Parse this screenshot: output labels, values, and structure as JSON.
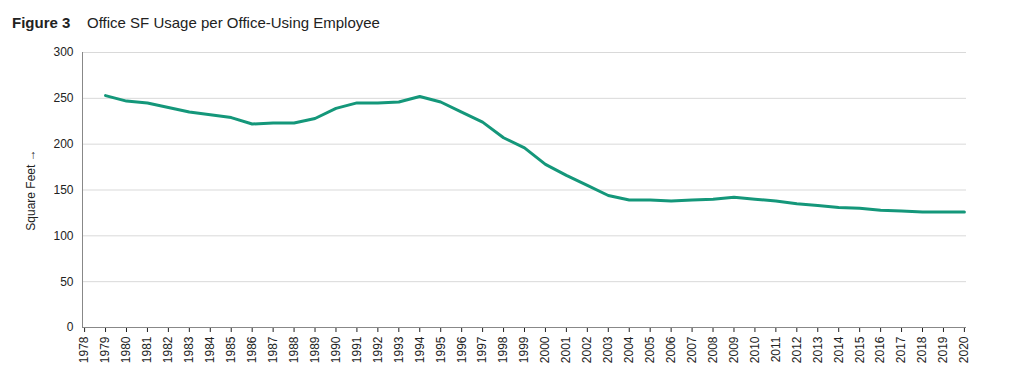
{
  "chart_data": {
    "type": "line",
    "title": "Figure 3    Office SF Usage per Office-Using Employee",
    "y_label": "Square Feet",
    "categories": [
      "1978",
      "1979",
      "1980",
      "1981",
      "1982",
      "1983",
      "1984",
      "1985",
      "1986",
      "1987",
      "1988",
      "1989",
      "1990",
      "1991",
      "1992",
      "1993",
      "1994",
      "1995",
      "1996",
      "1997",
      "1998",
      "1999",
      "2000",
      "2001",
      "2002",
      "2003",
      "2004",
      "2005",
      "2006",
      "2007",
      "2008",
      "2009",
      "2010",
      "2011",
      "2012",
      "2013",
      "2014",
      "2015",
      "2016",
      "2017",
      "2018",
      "2019",
      "2020"
    ],
    "values": [
      null,
      253,
      247,
      245,
      240,
      235,
      232,
      229,
      222,
      223,
      223,
      228,
      239,
      245,
      245,
      246,
      252,
      246,
      235,
      224,
      207,
      196,
      178,
      166,
      155,
      144,
      139,
      139,
      138,
      139,
      140,
      142,
      140,
      138,
      135,
      133,
      131,
      130,
      128,
      127,
      126,
      126,
      126
    ],
    "color": "#14977a",
    "ylim": [
      0,
      300
    ],
    "yticks": [
      0,
      50,
      100,
      150,
      200,
      250,
      300
    ],
    "grid": true
  }
}
